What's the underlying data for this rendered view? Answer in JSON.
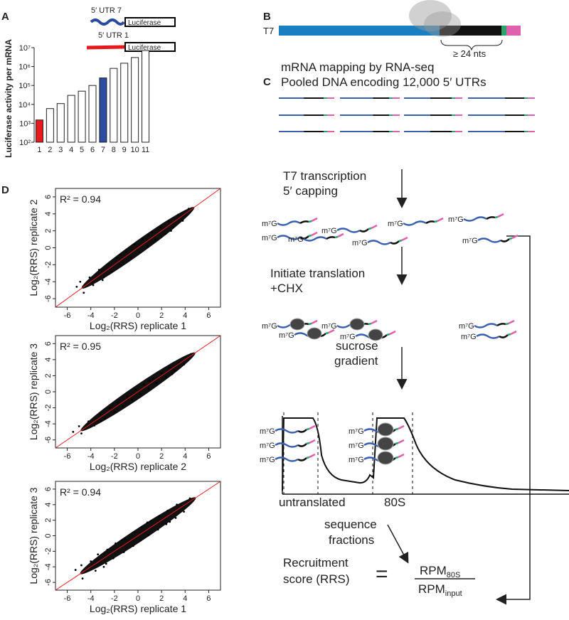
{
  "panel_labels": [
    "A",
    "B",
    "C",
    "D"
  ],
  "chart_data": [
    {
      "type": "bar",
      "ylabel": "Luciferase activity per mRNA",
      "categories": [
        "1",
        "2",
        "3",
        "4",
        "5",
        "6",
        "7",
        "8",
        "9",
        "10",
        "11"
      ],
      "values": [
        1500,
        6000,
        11000,
        30000,
        50000,
        100000,
        250000,
        800000,
        1500000,
        3000000,
        7000000
      ],
      "colors": [
        "#e8191c",
        "#ffffff",
        "#ffffff",
        "#ffffff",
        "#ffffff",
        "#ffffff",
        "#2b4ba0",
        "#ffffff",
        "#ffffff",
        "#ffffff",
        "#ffffff"
      ],
      "log_scale": true,
      "ylim": [
        100,
        10000000
      ],
      "yticks": [
        {
          "value": 100,
          "label": "10²"
        },
        {
          "value": 1000,
          "label": "10³"
        },
        {
          "value": 10000,
          "label": "10⁴"
        },
        {
          "value": 100000,
          "label": "10⁵"
        },
        {
          "value": 1000000,
          "label": "10⁶"
        },
        {
          "value": 10000000,
          "label": "10⁷"
        }
      ]
    },
    {
      "type": "scatter",
      "annotation": "R² = 0.94",
      "xlabel": "Log₂(RRS) replicate 1",
      "ylabel": "Log₂(RRS) replicate 2",
      "color": "#000000",
      "line_color": "#e8191c",
      "xlim": [
        -7,
        7
      ],
      "ylim": [
        -7,
        7
      ],
      "xticks": [
        -6,
        -4,
        -2,
        0,
        2,
        4,
        6
      ],
      "yticks": [
        -6,
        -4,
        -2,
        0,
        2,
        4,
        6
      ],
      "x": [
        -5.2,
        -4.6,
        -4.1,
        -3.8,
        -3.3,
        -2.9,
        -2.5,
        -2.2,
        -1.8,
        -1.4,
        -1.0,
        -0.6,
        -0.3,
        0.1,
        0.4,
        0.8,
        1.2,
        1.5,
        1.9,
        2.3,
        2.6,
        3.0,
        3.4,
        3.8,
        4.3,
        -1.5,
        0.9,
        2.8,
        -3.0,
        -4.9
      ],
      "y": [
        -4.6,
        -5.3,
        -3.5,
        -4.4,
        -2.6,
        -3.5,
        -1.9,
        -2.8,
        -1.2,
        -2.0,
        -0.5,
        -1.2,
        0.4,
        -0.5,
        1.0,
        0.2,
        1.8,
        0.9,
        2.4,
        1.6,
        3.1,
        2.4,
        3.9,
        3.2,
        4.6,
        -0.8,
        1.5,
        2.0,
        -3.8,
        -4.0
      ]
    },
    {
      "type": "scatter",
      "annotation": "R² = 0.95",
      "xlabel": "Log₂(RRS) replicate 2",
      "ylabel": "Log₂(RRS) replicate 3",
      "color": "#000000",
      "line_color": "#e8191c",
      "xlim": [
        -7,
        7
      ],
      "ylim": [
        -7,
        7
      ],
      "xticks": [
        -6,
        -4,
        -2,
        0,
        2,
        4,
        6
      ],
      "yticks": [
        -6,
        -4,
        -2,
        0,
        2,
        4,
        6
      ],
      "x": [
        -5.5,
        -4.8,
        -4.2,
        -3.7,
        -3.2,
        -2.8,
        -2.4,
        -2.0,
        -1.7,
        -1.3,
        -0.9,
        -0.5,
        -0.2,
        0.2,
        0.5,
        0.9,
        1.3,
        1.6,
        2.0,
        2.4,
        2.7,
        3.1,
        3.5,
        3.9,
        4.5,
        -1.6,
        1.0,
        2.9,
        -3.1,
        -5.0
      ],
      "y": [
        -5.0,
        -5.2,
        -3.7,
        -4.2,
        -2.8,
        -3.3,
        -2.0,
        -2.5,
        -1.3,
        -1.8,
        -0.6,
        -1.0,
        0.3,
        -0.3,
        0.9,
        0.4,
        1.7,
        1.1,
        2.3,
        1.8,
        3.0,
        2.6,
        3.7,
        3.4,
        4.7,
        -1.0,
        1.4,
        2.2,
        -3.6,
        -4.3
      ]
    },
    {
      "type": "scatter",
      "annotation": "R² = 0.94",
      "xlabel": "Log₂(RRS) replicate 1",
      "ylabel": "Log₂(RRS) replicate 3",
      "color": "#000000",
      "line_color": "#e8191c",
      "xlim": [
        -7,
        7
      ],
      "ylim": [
        -7,
        7
      ],
      "xticks": [
        -6,
        -4,
        -2,
        0,
        2,
        4,
        6
      ],
      "yticks": [
        -6,
        -4,
        -2,
        0,
        2,
        4,
        6
      ],
      "x": [
        -5.3,
        -4.7,
        -4.0,
        -3.6,
        -3.4,
        -2.7,
        -2.6,
        -2.1,
        -1.9,
        -1.2,
        -1.1,
        -0.4,
        -0.3,
        0.2,
        0.3,
        0.9,
        1.1,
        1.7,
        1.8,
        2.4,
        2.5,
        3.2,
        3.3,
        3.9,
        4.4,
        -1.4,
        0.8,
        2.7,
        -2.9,
        -4.8
      ],
      "y": [
        -4.4,
        -5.5,
        -3.3,
        -4.5,
        -2.4,
        -3.6,
        -1.8,
        -2.9,
        -1.0,
        -2.1,
        -0.4,
        -1.3,
        0.5,
        -0.6,
        1.1,
        0.1,
        1.9,
        0.8,
        2.5,
        1.5,
        3.2,
        2.3,
        4.0,
        3.1,
        4.8,
        -0.6,
        1.7,
        1.8,
        -4.0,
        -3.8
      ]
    }
  ],
  "panel_a_inset": {
    "utr7": "5′ UTR 7",
    "utr1": "5′ UTR 1",
    "reporter": "Luciferase"
  },
  "panel_b": {
    "promoter": "T7",
    "annotation": "≥ 24 nts"
  },
  "panel_c": {
    "title_1": "mRNA mapping by RNA-seq",
    "title_2": "Pooled DNA encoding 12,000 5′ UTRs",
    "step_1a": "T7 transcription",
    "step_1b": "5′ capping",
    "step_2a": "Initiate translation",
    "step_2b": "+CHX",
    "step_3a": "sucrose",
    "step_3b": "gradient",
    "fraction_1": "untranslated",
    "fraction_2": "80S",
    "step_4a": "sequence",
    "step_4b": "fractions",
    "cap_label": "m⁷G",
    "score_1": "Recruitment",
    "score_2": "score (RRS)",
    "equals": "=",
    "numerator": "RPM",
    "numerator_sub": "80S",
    "denominator": "RPM",
    "denominator_sub": "input"
  }
}
